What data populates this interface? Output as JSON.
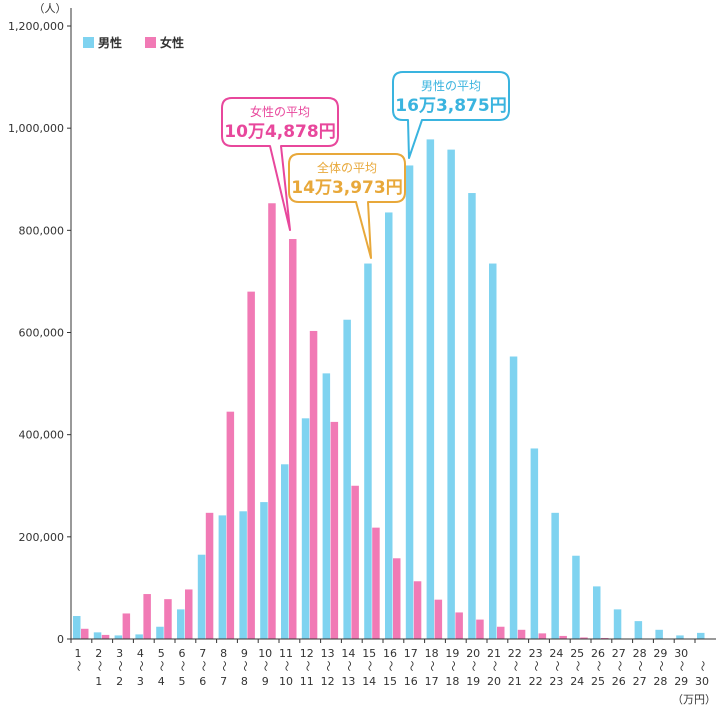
{
  "chart_data": {
    "type": "bar",
    "y_unit": "（人）",
    "x_unit": "（万円）",
    "ylim": [
      0,
      1200000
    ],
    "y_ticks": [
      "0",
      "200,000",
      "400,000",
      "600,000",
      "800,000",
      "1,000,000",
      "1,200,000"
    ],
    "y_tick_values": [
      0,
      200000,
      400000,
      600000,
      800000,
      1000000,
      1200000
    ],
    "x_separator": "〜",
    "categories": [
      {
        "top": "1",
        "bottom": ""
      },
      {
        "top": "2",
        "bottom": "1"
      },
      {
        "top": "3",
        "bottom": "2"
      },
      {
        "top": "4",
        "bottom": "3"
      },
      {
        "top": "5",
        "bottom": "4"
      },
      {
        "top": "6",
        "bottom": "5"
      },
      {
        "top": "7",
        "bottom": "6"
      },
      {
        "top": "8",
        "bottom": "7"
      },
      {
        "top": "9",
        "bottom": "8"
      },
      {
        "top": "10",
        "bottom": "9"
      },
      {
        "top": "11",
        "bottom": "10"
      },
      {
        "top": "12",
        "bottom": "11"
      },
      {
        "top": "13",
        "bottom": "12"
      },
      {
        "top": "14",
        "bottom": "13"
      },
      {
        "top": "15",
        "bottom": "14"
      },
      {
        "top": "16",
        "bottom": "15"
      },
      {
        "top": "17",
        "bottom": "16"
      },
      {
        "top": "18",
        "bottom": "17"
      },
      {
        "top": "19",
        "bottom": "18"
      },
      {
        "top": "20",
        "bottom": "19"
      },
      {
        "top": "21",
        "bottom": "20"
      },
      {
        "top": "22",
        "bottom": "21"
      },
      {
        "top": "23",
        "bottom": "22"
      },
      {
        "top": "24",
        "bottom": "23"
      },
      {
        "top": "25",
        "bottom": "24"
      },
      {
        "top": "26",
        "bottom": "25"
      },
      {
        "top": "27",
        "bottom": "26"
      },
      {
        "top": "28",
        "bottom": "27"
      },
      {
        "top": "29",
        "bottom": "28"
      },
      {
        "top": "30",
        "bottom": "29"
      },
      {
        "top": "",
        "bottom": "30"
      }
    ],
    "series": [
      {
        "name": "男性",
        "color": "#7fd3f0",
        "values": [
          45000,
          13000,
          7000,
          9000,
          24000,
          58000,
          165000,
          242000,
          250000,
          268000,
          342000,
          432000,
          520000,
          625000,
          735000,
          835000,
          927000,
          978000,
          958000,
          873000,
          735000,
          553000,
          373000,
          247000,
          163000,
          103000,
          58000,
          35000,
          18000,
          7000,
          12000
        ]
      },
      {
        "name": "女性",
        "color": "#f17ab5",
        "values": [
          20000,
          8000,
          50000,
          88000,
          78000,
          97000,
          247000,
          445000,
          680000,
          853000,
          783000,
          603000,
          425000,
          300000,
          218000,
          158000,
          113000,
          77000,
          52000,
          38000,
          24000,
          18000,
          11000,
          6000,
          3000,
          2000,
          1000,
          1000,
          0,
          0,
          0
        ]
      }
    ],
    "legend": {
      "placement": "top-left",
      "items": [
        "男性",
        "女性"
      ]
    },
    "annotations": [
      {
        "id": "female",
        "title": "女性の平均",
        "value": "10万4,878円",
        "color": "#e8479c"
      },
      {
        "id": "total",
        "title": "全体の平均",
        "value": "14万3,973円",
        "color": "#e8a83a"
      },
      {
        "id": "male",
        "title": "男性の平均",
        "value": "16万3,875円",
        "color": "#3ab4df"
      }
    ],
    "grid": false
  }
}
